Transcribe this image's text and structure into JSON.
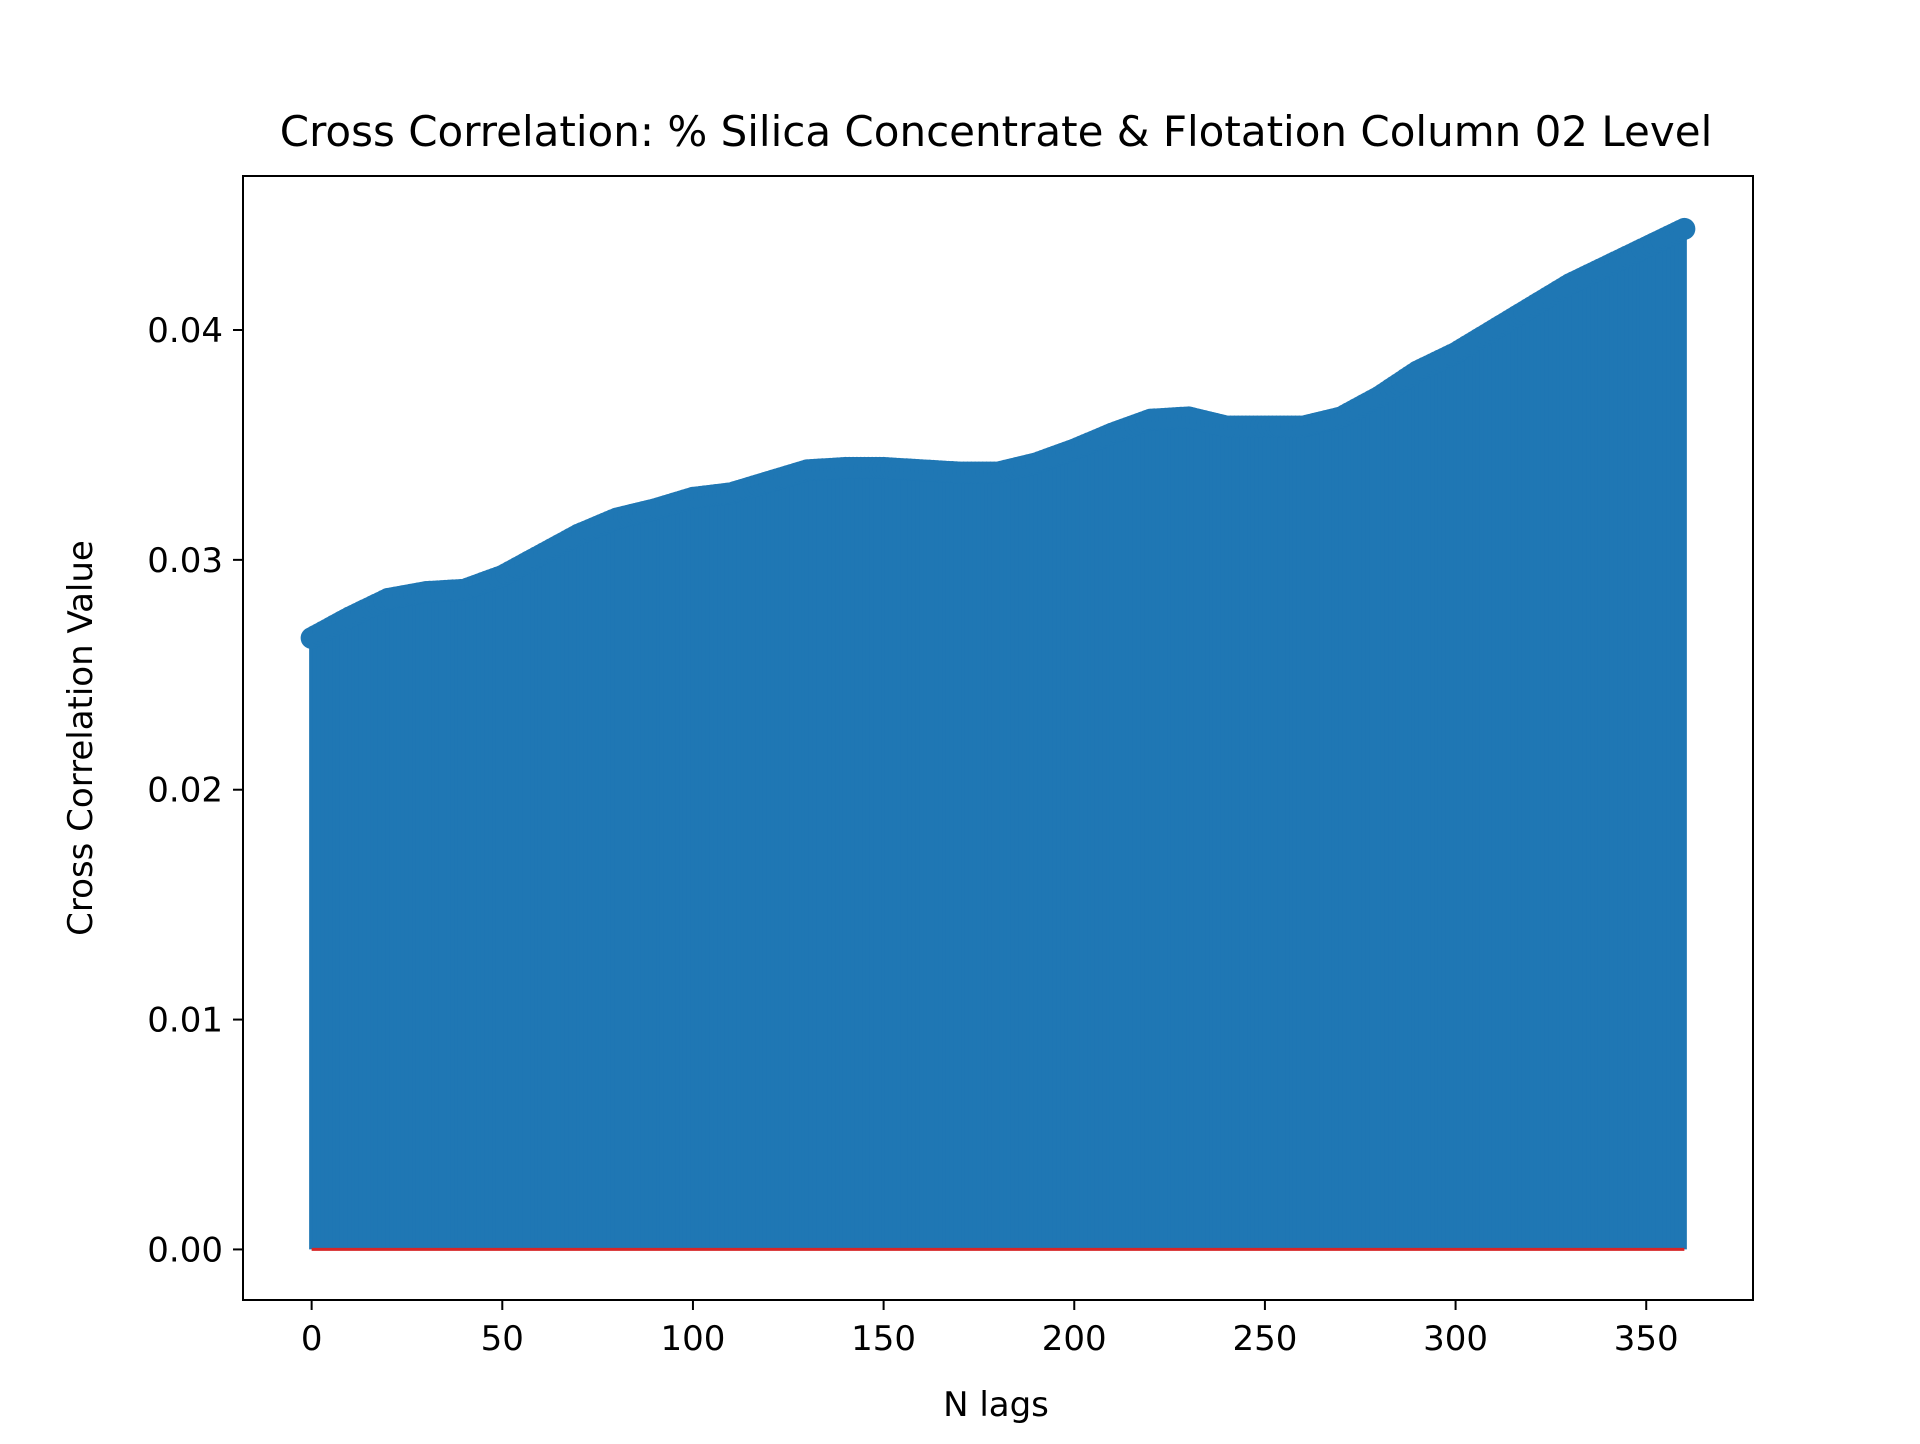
{
  "chart_data": {
    "type": "stem",
    "title": "Cross Correlation: % Silica Concentrate & Flotation Column 02 Level",
    "xlabel": "N lags",
    "ylabel": "Cross Correlation Value",
    "xlim": [
      -18,
      378
    ],
    "ylim": [
      -0.0022,
      0.0467
    ],
    "xticks": [
      0,
      50,
      100,
      150,
      200,
      250,
      300,
      350
    ],
    "xtick_labels": [
      "0",
      "50",
      "100",
      "150",
      "200",
      "250",
      "300",
      "350"
    ],
    "yticks": [
      0.0,
      0.01,
      0.02,
      0.03,
      0.04
    ],
    "ytick_labels": [
      "0.00",
      "0.01",
      "0.02",
      "0.03",
      "0.04"
    ],
    "grid": false,
    "colors": {
      "stem": "#1f77b4",
      "baseline": "#d62728",
      "axes": "#000000",
      "background": "#ffffff"
    },
    "lags_range": [
      0,
      360
    ],
    "series": [
      {
        "x": [
          0,
          10,
          20,
          30,
          40,
          50,
          60,
          70,
          80,
          90,
          100,
          110,
          120,
          130,
          140,
          150,
          160,
          170,
          180,
          190,
          200,
          210,
          220,
          230,
          240,
          250,
          260,
          270,
          280,
          290,
          300,
          310,
          320,
          330,
          340,
          350,
          360
        ],
        "y": [
          0.0266,
          0.0275,
          0.0283,
          0.0286,
          0.0287,
          0.0293,
          0.0302,
          0.0311,
          0.0318,
          0.0322,
          0.0327,
          0.0329,
          0.0334,
          0.0339,
          0.034,
          0.034,
          0.0339,
          0.0338,
          0.0338,
          0.0342,
          0.0348,
          0.0355,
          0.0361,
          0.0362,
          0.0358,
          0.0358,
          0.0358,
          0.0362,
          0.0371,
          0.0382,
          0.039,
          0.04,
          0.041,
          0.042,
          0.0428,
          0.0436,
          0.0444
        ]
      }
    ]
  }
}
